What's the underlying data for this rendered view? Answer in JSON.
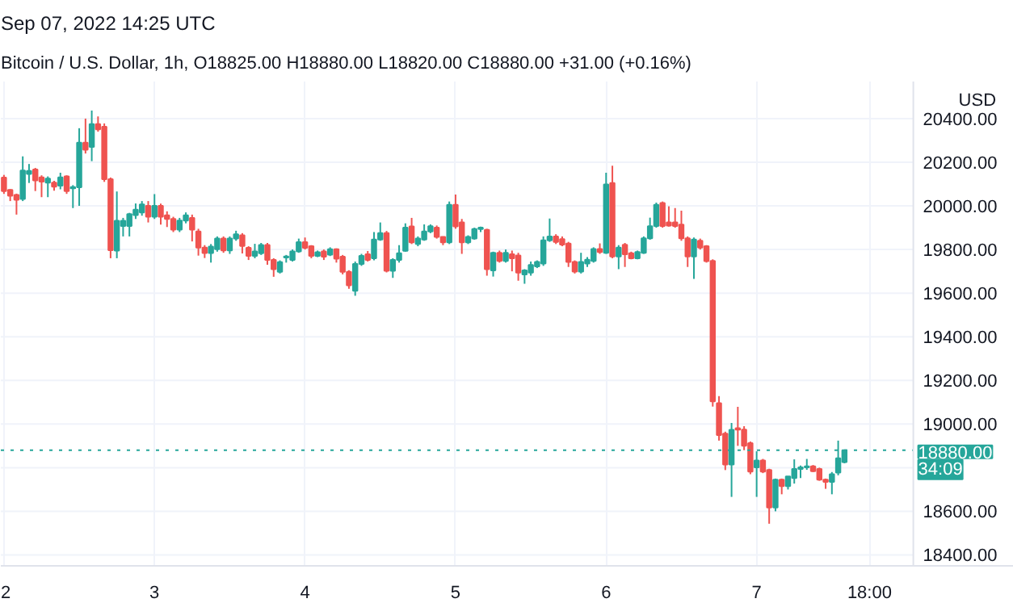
{
  "chart_data": {
    "type": "candlestick",
    "title": "Sep 07, 2022 14:25 UTC",
    "subtitle": "Bitcoin / U.S. Dollar, 1h, O18825.00 H18880.00 L18820.00 C18880.00 +31.00 (+0.16%)",
    "ylabel": "USD",
    "colors": [
      "#ef5350",
      "#ef5350",
      "#ef5350",
      "#26a69a",
      "#26a69a",
      "#ef5350",
      "#ef5350",
      "#26a69a",
      "#ef5350",
      "#26a69a",
      "#ef5350",
      "#26a69a",
      "#26a69a",
      "#ef5350",
      "#26a69a",
      "#ef5350",
      "#ef5350",
      "#ef5350",
      "#26a69a",
      "#26a69a",
      "#26a69a",
      "#26a69a",
      "#26a69a",
      "#ef5350",
      "#26a69a",
      "#ef5350",
      "#ef5350",
      "#ef5350",
      "#26a69a",
      "#26a69a",
      "#ef5350",
      "#ef5350",
      "#ef5350",
      "#26a69a",
      "#26a69a",
      "#ef5350",
      "#26a69a",
      "#26a69a",
      "#ef5350",
      "#ef5350",
      "#26a69a",
      "#26a69a",
      "#ef5350",
      "#ef5350",
      "#26a69a",
      "#26a69a",
      "#26a69a",
      "#26a69a",
      "#ef5350",
      "#ef5350",
      "#26a69a",
      "#ef5350",
      "#26a69a",
      "#ef5350",
      "#ef5350",
      "#ef5350",
      "#26a69a",
      "#26a69a",
      "#ef5350",
      "#26a69a",
      "#26a69a",
      "#ef5350",
      "#26a69a",
      "#26a69a",
      "#26a69a",
      "#ef5350",
      "#26a69a",
      "#26a69a",
      "#26a69a",
      "#ef5350",
      "#ef5350",
      "#26a69a",
      "#ef5350",
      "#ef5350",
      "#26a69a",
      "#26a69a",
      "#26a69a",
      "#ef5350",
      "#26a69a",
      "#ef5350",
      "#26a69a",
      "#ef5350",
      "#ef5350",
      "#26a69a",
      "#26a69a",
      "#26a69a",
      "#26a69a",
      "#26a69a",
      "#ef5350",
      "#ef5350",
      "#ef5350",
      "#ef5350",
      "#26a69a",
      "#26a69a",
      "#26a69a",
      "#ef5350",
      "#26a69a",
      "#ef5350",
      "#26a69a",
      "#ef5350",
      "#ef5350",
      "#26a69a",
      "#26a69a",
      "#26a69a",
      "#26a69a",
      "#ef5350",
      "#ef5350",
      "#ef5350",
      "#ef5350",
      "#ef5350",
      "#26a69a",
      "#ef5350",
      "#ef5350",
      "#ef5350",
      "#ef5350",
      "#ef5350",
      "#26a69a",
      "#ef5350",
      "#ef5350",
      "#ef5350",
      "#26a69a",
      "#ef5350",
      "#ef5350",
      "#26a69a",
      "#ef5350",
      "#26a69a",
      "#26a69a",
      "#26a69a",
      "#26a69a",
      "#ef5350",
      "#ef5350",
      "#ef5350",
      "#26a69a",
      "#26a69a",
      "#26a69a"
    ],
    "x": [
      "2022-09-02T00:00",
      "2022-09-02T01:00",
      "2022-09-02T02:00",
      "2022-09-02T03:00",
      "2022-09-02T04:00",
      "2022-09-02T05:00",
      "2022-09-02T06:00",
      "2022-09-02T07:00",
      "2022-09-02T08:00",
      "2022-09-02T09:00",
      "2022-09-02T10:00",
      "2022-09-02T11:00",
      "2022-09-02T12:00",
      "2022-09-02T13:00",
      "2022-09-02T14:00",
      "2022-09-02T15:00",
      "2022-09-02T16:00",
      "2022-09-02T17:00",
      "2022-09-02T18:00",
      "2022-09-02T19:00",
      "2022-09-02T20:00",
      "2022-09-02T21:00",
      "2022-09-02T22:00",
      "2022-09-02T23:00",
      "2022-09-03T00:00",
      "2022-09-03T01:00",
      "2022-09-03T02:00",
      "2022-09-03T03:00",
      "2022-09-03T04:00",
      "2022-09-03T05:00",
      "2022-09-03T06:00",
      "2022-09-03T07:00",
      "2022-09-03T08:00",
      "2022-09-03T09:00",
      "2022-09-03T10:00",
      "2022-09-03T11:00",
      "2022-09-03T12:00",
      "2022-09-03T13:00",
      "2022-09-03T14:00",
      "2022-09-03T15:00",
      "2022-09-03T16:00",
      "2022-09-03T17:00",
      "2022-09-03T18:00",
      "2022-09-03T19:00",
      "2022-09-03T20:00",
      "2022-09-03T21:00",
      "2022-09-03T22:00",
      "2022-09-03T23:00",
      "2022-09-04T00:00",
      "2022-09-04T01:00",
      "2022-09-04T02:00",
      "2022-09-04T03:00",
      "2022-09-04T04:00",
      "2022-09-04T05:00",
      "2022-09-04T06:00",
      "2022-09-04T07:00",
      "2022-09-04T08:00",
      "2022-09-04T09:00",
      "2022-09-04T10:00",
      "2022-09-04T11:00",
      "2022-09-04T12:00",
      "2022-09-04T13:00",
      "2022-09-04T14:00",
      "2022-09-04T15:00",
      "2022-09-04T16:00",
      "2022-09-04T17:00",
      "2022-09-04T18:00",
      "2022-09-04T19:00",
      "2022-09-04T20:00",
      "2022-09-04T21:00",
      "2022-09-04T22:00",
      "2022-09-04T23:00",
      "2022-09-05T00:00",
      "2022-09-05T01:00",
      "2022-09-05T02:00",
      "2022-09-05T03:00",
      "2022-09-05T04:00",
      "2022-09-05T05:00",
      "2022-09-05T06:00",
      "2022-09-05T07:00",
      "2022-09-05T08:00",
      "2022-09-05T09:00",
      "2022-09-05T10:00",
      "2022-09-05T11:00",
      "2022-09-05T12:00",
      "2022-09-05T13:00",
      "2022-09-05T14:00",
      "2022-09-05T15:00",
      "2022-09-05T16:00",
      "2022-09-05T17:00",
      "2022-09-05T18:00",
      "2022-09-05T19:00",
      "2022-09-05T20:00",
      "2022-09-05T21:00",
      "2022-09-05T22:00",
      "2022-09-05T23:00",
      "2022-09-06T00:00",
      "2022-09-06T01:00",
      "2022-09-06T02:00",
      "2022-09-06T03:00",
      "2022-09-06T04:00",
      "2022-09-06T05:00",
      "2022-09-06T06:00",
      "2022-09-06T07:00",
      "2022-09-06T08:00",
      "2022-09-06T09:00",
      "2022-09-06T10:00",
      "2022-09-06T11:00",
      "2022-09-06T12:00",
      "2022-09-06T13:00",
      "2022-09-06T14:00",
      "2022-09-06T15:00",
      "2022-09-06T16:00",
      "2022-09-06T17:00",
      "2022-09-06T18:00",
      "2022-09-06T19:00",
      "2022-09-06T20:00",
      "2022-09-06T21:00",
      "2022-09-06T22:00",
      "2022-09-06T23:00",
      "2022-09-07T00:00",
      "2022-09-07T01:00",
      "2022-09-07T02:00",
      "2022-09-07T03:00",
      "2022-09-07T04:00",
      "2022-09-07T05:00",
      "2022-09-07T06:00",
      "2022-09-07T07:00",
      "2022-09-07T08:00",
      "2022-09-07T09:00",
      "2022-09-07T10:00",
      "2022-09-07T11:00",
      "2022-09-07T12:00",
      "2022-09-07T13:00",
      "2022-09-07T14:00"
    ],
    "ohlc": [
      [
        20130,
        20142,
        20055,
        20068
      ],
      [
        20073,
        20076,
        20022,
        20046
      ],
      [
        20050,
        20056,
        19960,
        20028
      ],
      [
        20032,
        20227,
        20022,
        20162
      ],
      [
        20146,
        20192,
        20105,
        20160
      ],
      [
        20167,
        20174,
        20068,
        20117
      ],
      [
        20131,
        20140,
        20040,
        20111
      ],
      [
        20107,
        20135,
        20040,
        20125
      ],
      [
        20107,
        20115,
        20070,
        20088
      ],
      [
        20093,
        20152,
        20076,
        20131
      ],
      [
        20135,
        20140,
        20055,
        20068
      ],
      [
        20081,
        20095,
        19990,
        20086
      ],
      [
        20085,
        20356,
        20000,
        20290
      ],
      [
        20290,
        20400,
        20240,
        20257
      ],
      [
        20270,
        20437,
        20205,
        20375
      ],
      [
        20375,
        20410,
        20340,
        20351
      ],
      [
        20363,
        20378,
        20110,
        20122
      ],
      [
        20122,
        20130,
        19760,
        19797
      ],
      [
        19795,
        20066,
        19760,
        19932
      ],
      [
        19908,
        19945,
        19860,
        19932
      ],
      [
        19908,
        19968,
        19860,
        19962
      ],
      [
        19958,
        20011,
        19940,
        19983
      ],
      [
        19970,
        20022,
        19955,
        20007
      ],
      [
        20000,
        20022,
        19924,
        19950
      ],
      [
        19950,
        20054,
        19940,
        20000
      ],
      [
        20000,
        20010,
        19914,
        19950
      ],
      [
        19957,
        19975,
        19903,
        19940
      ],
      [
        19940,
        19950,
        19880,
        19891
      ],
      [
        19891,
        19945,
        19880,
        19933
      ],
      [
        19933,
        19970,
        19920,
        19957
      ],
      [
        19945,
        19960,
        19837,
        19891
      ],
      [
        19883,
        19895,
        19772,
        19809
      ],
      [
        19809,
        19820,
        19761,
        19784
      ],
      [
        19784,
        19825,
        19740,
        19813
      ],
      [
        19801,
        19860,
        19790,
        19850
      ],
      [
        19850,
        19860,
        19785,
        19796
      ],
      [
        19796,
        19860,
        19780,
        19850
      ],
      [
        19850,
        19886,
        19840,
        19870
      ],
      [
        19865,
        19875,
        19782,
        19816
      ],
      [
        19808,
        19815,
        19752,
        19771
      ],
      [
        19771,
        19826,
        19760,
        19791
      ],
      [
        19783,
        19830,
        19775,
        19821
      ],
      [
        19821,
        19830,
        19730,
        19752
      ],
      [
        19752,
        19760,
        19675,
        19710
      ],
      [
        19698,
        19750,
        19690,
        19742
      ],
      [
        19763,
        19775,
        19740,
        19768
      ],
      [
        19752,
        19800,
        19745,
        19791
      ],
      [
        19791,
        19850,
        19785,
        19834
      ],
      [
        19834,
        19855,
        19800,
        19808
      ],
      [
        19815,
        19820,
        19760,
        19771
      ],
      [
        19771,
        19795,
        19765,
        19787
      ],
      [
        19791,
        19800,
        19752,
        19767
      ],
      [
        19776,
        19810,
        19770,
        19801
      ],
      [
        19801,
        19805,
        19740,
        19758
      ],
      [
        19767,
        19775,
        19686,
        19698
      ],
      [
        19698,
        19705,
        19620,
        19636
      ],
      [
        19611,
        19745,
        19588,
        19734
      ],
      [
        19734,
        19780,
        19725,
        19771
      ],
      [
        19778,
        19793,
        19745,
        19752
      ],
      [
        19760,
        19880,
        19750,
        19846
      ],
      [
        19846,
        19924,
        19840,
        19875
      ],
      [
        19875,
        19885,
        19695,
        19702
      ],
      [
        19702,
        19760,
        19670,
        19752
      ],
      [
        19752,
        19820,
        19740,
        19783
      ],
      [
        19794,
        19920,
        19790,
        19900
      ],
      [
        19906,
        19945,
        19825,
        19833
      ],
      [
        19825,
        19860,
        19815,
        19850
      ],
      [
        19846,
        19915,
        19840,
        19883
      ],
      [
        19883,
        19915,
        19875,
        19907
      ],
      [
        19900,
        19910,
        19850,
        19858
      ],
      [
        19858,
        19860,
        19820,
        19833
      ],
      [
        19833,
        20020,
        19825,
        20005
      ],
      [
        20005,
        20052,
        19895,
        19906
      ],
      [
        19924,
        19940,
        19780,
        19833
      ],
      [
        19833,
        19865,
        19825,
        19858
      ],
      [
        19850,
        19900,
        19845,
        19894
      ],
      [
        19894,
        19905,
        19880,
        19900
      ],
      [
        19890,
        19895,
        19680,
        19710
      ],
      [
        19704,
        19790,
        19676,
        19785
      ],
      [
        19785,
        19795,
        19740,
        19748
      ],
      [
        19748,
        19800,
        19740,
        19785
      ],
      [
        19778,
        19795,
        19700,
        19760
      ],
      [
        19773,
        19785,
        19657,
        19694
      ],
      [
        19686,
        19710,
        19643,
        19704
      ],
      [
        19694,
        19745,
        19680,
        19729
      ],
      [
        19723,
        19750,
        19715,
        19743
      ],
      [
        19736,
        19860,
        19725,
        19842
      ],
      [
        19842,
        19942,
        19835,
        19860
      ],
      [
        19860,
        19870,
        19825,
        19835
      ],
      [
        19848,
        19860,
        19815,
        19823
      ],
      [
        19827,
        19835,
        19720,
        19743
      ],
      [
        19743,
        19750,
        19690,
        19699
      ],
      [
        19699,
        19785,
        19690,
        19743
      ],
      [
        19736,
        19765,
        19720,
        19753
      ],
      [
        19748,
        19810,
        19740,
        19802
      ],
      [
        19802,
        19828,
        19780,
        19788
      ],
      [
        19785,
        20152,
        19780,
        20098
      ],
      [
        20105,
        20184,
        19760,
        19768
      ],
      [
        19768,
        19820,
        19710,
        19809
      ],
      [
        19822,
        19830,
        19720,
        19778
      ],
      [
        19783,
        19790,
        19755,
        19760
      ],
      [
        19760,
        19795,
        19755,
        19788
      ],
      [
        19785,
        19860,
        19780,
        19851
      ],
      [
        19851,
        19946,
        19845,
        19907
      ],
      [
        19908,
        20015,
        19900,
        20005
      ],
      [
        20013,
        20020,
        19900,
        19908
      ],
      [
        19924,
        19998,
        19905,
        19910
      ],
      [
        19924,
        19990,
        19900,
        19908
      ],
      [
        19914,
        19978,
        19840,
        19851
      ],
      [
        19851,
        19860,
        19720,
        19768
      ],
      [
        19768,
        19855,
        19665,
        19846
      ],
      [
        19840,
        19850,
        19800,
        19809
      ],
      [
        19815,
        19820,
        19740,
        19747
      ],
      [
        19748,
        19755,
        19080,
        19104
      ],
      [
        19096,
        19128,
        18924,
        18949
      ],
      [
        18956,
        18965,
        18789,
        18814
      ],
      [
        18814,
        19005,
        18666,
        18973
      ],
      [
        18981,
        19079,
        18900,
        18974
      ],
      [
        18974,
        18990,
        18880,
        18900
      ],
      [
        18912,
        18920,
        18770,
        18782
      ],
      [
        18801,
        18875,
        18666,
        18833
      ],
      [
        18833,
        18840,
        18775,
        18782
      ],
      [
        18789,
        18795,
        18543,
        18617
      ],
      [
        18617,
        18750,
        18600,
        18745
      ],
      [
        18745,
        18750,
        18678,
        18715
      ],
      [
        18715,
        18760,
        18700,
        18760
      ],
      [
        18752,
        18838,
        18727,
        18794
      ],
      [
        18794,
        18810,
        18752,
        18801
      ],
      [
        18801,
        18840,
        18790,
        18806
      ],
      [
        18806,
        18812,
        18780,
        18784
      ],
      [
        18794,
        18800,
        18740,
        18745
      ],
      [
        18745,
        18750,
        18703,
        18735
      ],
      [
        18735,
        18780,
        18678,
        18770
      ],
      [
        18777,
        18924,
        18765,
        18843
      ],
      [
        18825,
        18880,
        18820,
        18880
      ]
    ],
    "xlim": [
      "2022-09-01T23:30",
      "2022-09-08T17:00"
    ],
    "xticks": [
      {
        "value": "2022-09-02T00:00",
        "label": "2"
      },
      {
        "value": "2022-09-03T00:00",
        "label": "3"
      },
      {
        "value": "2022-09-04T00:00",
        "label": "4"
      },
      {
        "value": "2022-09-05T00:00",
        "label": "5"
      },
      {
        "value": "2022-09-06T00:00",
        "label": "6"
      },
      {
        "value": "2022-09-07T00:00",
        "label": "7"
      },
      {
        "value": "2022-09-07T18:00",
        "label": "18:00"
      }
    ],
    "ylim": [
      18350,
      20570
    ],
    "yticks": [
      {
        "value": 18400,
        "label": "18400.00"
      },
      {
        "value": 18600,
        "label": "18600.00"
      },
      {
        "value": 18800,
        "label": null
      },
      {
        "value": 19000,
        "label": "19000.00"
      },
      {
        "value": 19200,
        "label": "19200.00"
      },
      {
        "value": 19400,
        "label": "19400.00"
      },
      {
        "value": 19600,
        "label": "19600.00"
      },
      {
        "value": 19800,
        "label": "19800.00"
      },
      {
        "value": 20000,
        "label": "20000.00"
      },
      {
        "value": 20200,
        "label": "20200.00"
      },
      {
        "value": 20400,
        "label": "20400.00"
      }
    ],
    "ref_lines": [
      {
        "axis": "y",
        "value": 18880,
        "label": "18880.00",
        "color": "#26a69a",
        "line_style": "dotted"
      }
    ],
    "annotations": [
      "34:09"
    ],
    "grid": true
  }
}
